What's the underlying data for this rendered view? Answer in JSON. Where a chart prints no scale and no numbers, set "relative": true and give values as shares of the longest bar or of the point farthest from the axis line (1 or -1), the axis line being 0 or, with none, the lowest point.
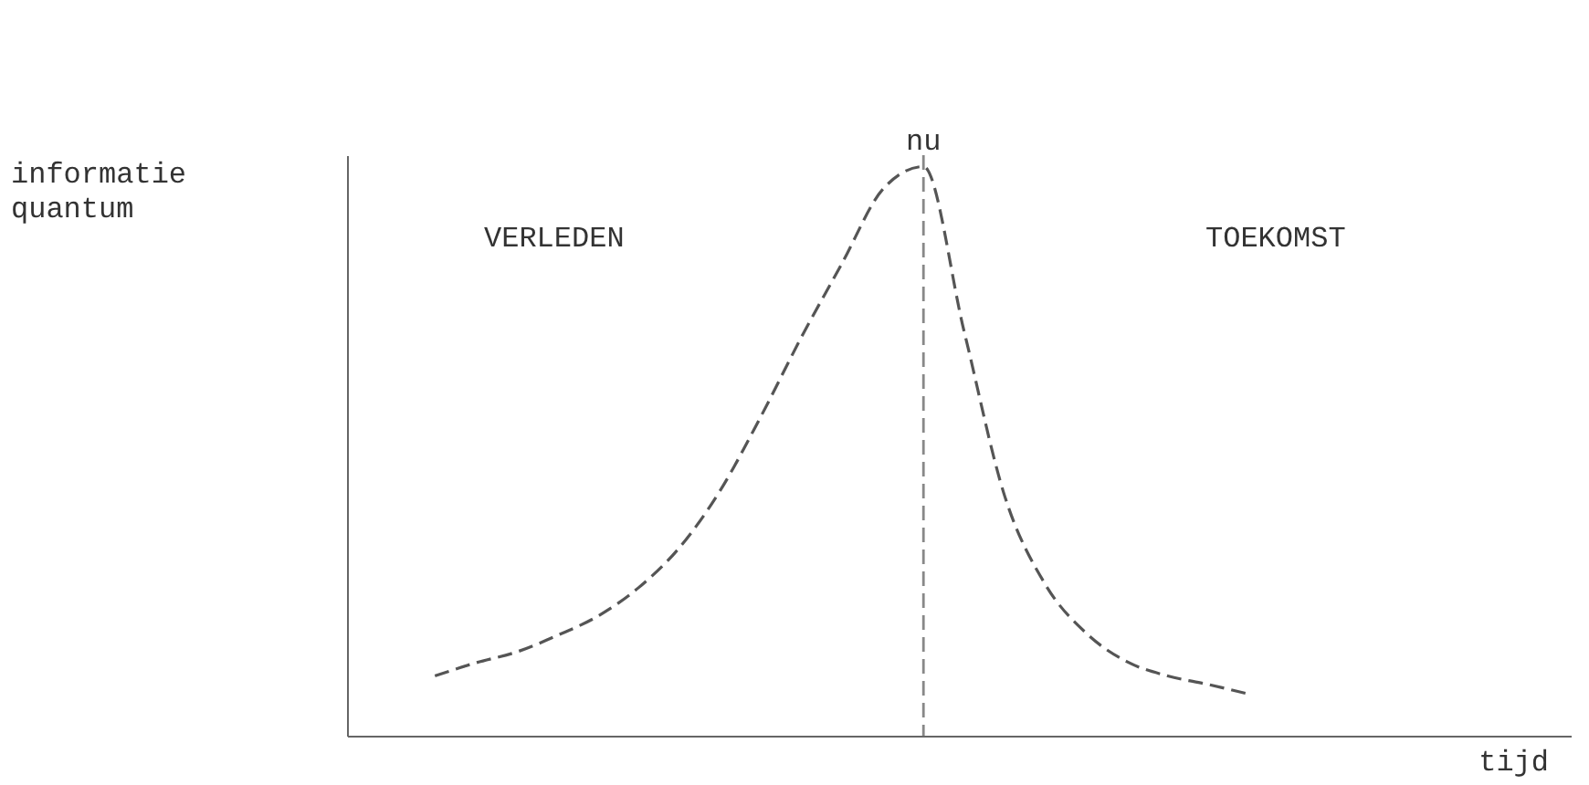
{
  "chart_data": {
    "type": "line",
    "relative": true,
    "categories": [
      null,
      null,
      null,
      null,
      null,
      null,
      null,
      null,
      null,
      null,
      null,
      null,
      null,
      null,
      null,
      null,
      null,
      null,
      null,
      null,
      null
    ],
    "series": [
      {
        "color": "#555555",
        "values": [
          0.105,
          0.128,
          0.147,
          0.176,
          0.21,
          0.26,
          0.33,
          0.43,
          0.56,
          0.7,
          0.83,
          0.96,
          1.0,
          0.71,
          0.42,
          0.265,
          0.18,
          0.13,
          0.105,
          0.09,
          0.073
        ]
      }
    ],
    "annotations": [
      "informatie quantum",
      "VERLEDEN",
      "TOEKOMST",
      "nu",
      "tijd"
    ],
    "line_style": "dashed",
    "grid": false,
    "tick_labels": false
  }
}
